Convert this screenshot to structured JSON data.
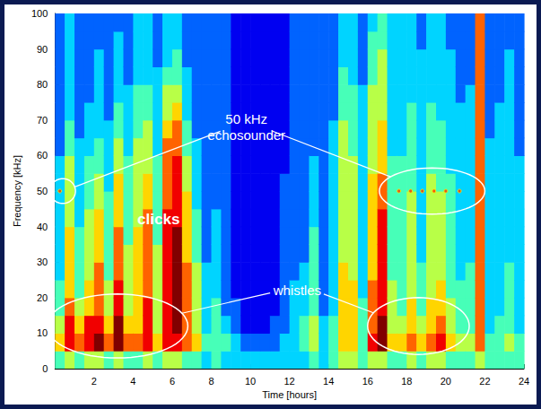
{
  "chart_data": {
    "type": "spectrogram",
    "x_label": "Time [hours]",
    "y_label": "Frequency [kHz]",
    "xlim": [
      0,
      24
    ],
    "xticks": [
      2,
      4,
      6,
      8,
      10,
      12,
      14,
      16,
      18,
      20,
      22,
      24
    ],
    "ylim": [
      0,
      100
    ],
    "yticks": [
      0,
      10,
      20,
      30,
      40,
      50,
      60,
      70,
      80,
      90,
      100
    ],
    "grid": false,
    "x_bins": [
      0,
      0.5,
      1,
      1.5,
      2,
      2.5,
      3,
      3.5,
      4,
      4.5,
      5,
      5.5,
      6,
      6.5,
      7,
      7.5,
      8,
      8.5,
      9,
      9.5,
      10,
      10.5,
      11,
      11.5,
      12,
      12.5,
      13,
      13.5,
      14,
      14.5,
      15,
      15.5,
      16,
      16.5,
      17,
      17.5,
      18,
      18.5,
      19,
      19.5,
      20,
      20.5,
      21,
      21.5,
      22,
      22.5,
      23,
      23.5,
      24
    ],
    "y_bins": [
      0,
      5,
      10,
      15,
      20,
      25,
      30,
      35,
      40,
      45,
      50,
      55,
      60,
      65,
      70,
      75,
      80,
      85,
      90,
      95,
      100
    ],
    "z_range": [
      0,
      9
    ],
    "z": [
      [
        4,
        6,
        5,
        4,
        4,
        3,
        3,
        3,
        3,
        3,
        3,
        3,
        2,
        2,
        2,
        2,
        2,
        2,
        2,
        2
      ],
      [
        5,
        8,
        8,
        7,
        6,
        6,
        6,
        6,
        5,
        5,
        5,
        5,
        4,
        4,
        3,
        3,
        3,
        3,
        3,
        3
      ],
      [
        4,
        7,
        6,
        5,
        4,
        4,
        4,
        4,
        3,
        3,
        3,
        3,
        3,
        2,
        2,
        2,
        2,
        2,
        2,
        2
      ],
      [
        5,
        8,
        8,
        6,
        6,
        5,
        5,
        5,
        5,
        4,
        4,
        4,
        3,
        3,
        3,
        2,
        2,
        2,
        2,
        2
      ],
      [
        5,
        9,
        8,
        7,
        7,
        7,
        6,
        6,
        6,
        5,
        5,
        4,
        4,
        3,
        3,
        3,
        3,
        3,
        2,
        2
      ],
      [
        4,
        7,
        6,
        5,
        5,
        4,
        4,
        4,
        4,
        4,
        3,
        3,
        3,
        3,
        2,
        2,
        2,
        2,
        2,
        2
      ],
      [
        5,
        9,
        9,
        8,
        8,
        7,
        7,
        7,
        6,
        6,
        6,
        5,
        5,
        4,
        4,
        3,
        3,
        3,
        3,
        2
      ],
      [
        4,
        7,
        6,
        5,
        5,
        5,
        5,
        4,
        4,
        4,
        4,
        4,
        3,
        3,
        3,
        3,
        2,
        2,
        2,
        2
      ],
      [
        4,
        7,
        6,
        6,
        6,
        6,
        6,
        6,
        5,
        5,
        5,
        5,
        5,
        4,
        4,
        4,
        3,
        3,
        3,
        3
      ],
      [
        5,
        8,
        8,
        8,
        7,
        7,
        7,
        7,
        7,
        6,
        6,
        5,
        5,
        5,
        4,
        4,
        3,
        3,
        3,
        3
      ],
      [
        4,
        6,
        5,
        5,
        5,
        5,
        5,
        4,
        4,
        4,
        4,
        4,
        3,
        3,
        3,
        3,
        3,
        2,
        2,
        2
      ],
      [
        5,
        8,
        8,
        8,
        8,
        8,
        8,
        8,
        8,
        7,
        7,
        7,
        7,
        6,
        5,
        5,
        4,
        3,
        3,
        3
      ],
      [
        5,
        8,
        9,
        9,
        9,
        9,
        9,
        9,
        8,
        8,
        8,
        8,
        7,
        7,
        6,
        5,
        4,
        4,
        3,
        3
      ],
      [
        4,
        7,
        7,
        7,
        7,
        7,
        6,
        6,
        6,
        6,
        5,
        5,
        4,
        4,
        3,
        3,
        3,
        2,
        2,
        2
      ],
      [
        4,
        6,
        5,
        5,
        5,
        5,
        4,
        4,
        4,
        3,
        3,
        3,
        3,
        2,
        2,
        2,
        2,
        2,
        2,
        2
      ],
      [
        3,
        4,
        3,
        3,
        3,
        3,
        2,
        2,
        2,
        2,
        2,
        2,
        2,
        2,
        2,
        2,
        2,
        2,
        2,
        2
      ],
      [
        4,
        4,
        4,
        4,
        3,
        3,
        3,
        3,
        3,
        2,
        2,
        2,
        2,
        2,
        2,
        2,
        2,
        2,
        2,
        2
      ],
      [
        3,
        4,
        3,
        2,
        2,
        2,
        2,
        2,
        2,
        2,
        2,
        2,
        2,
        2,
        2,
        2,
        2,
        2,
        2,
        2
      ],
      [
        3,
        3,
        2,
        2,
        1,
        1,
        1,
        1,
        1,
        1,
        1,
        1,
        1,
        1,
        1,
        1,
        1,
        1,
        1,
        1
      ],
      [
        3,
        2,
        1,
        1,
        1,
        1,
        1,
        1,
        1,
        1,
        1,
        1,
        1,
        1,
        1,
        1,
        1,
        1,
        1,
        1
      ],
      [
        3,
        2,
        1,
        1,
        1,
        1,
        1,
        1,
        1,
        1,
        1,
        1,
        1,
        1,
        1,
        1,
        1,
        1,
        1,
        1
      ],
      [
        3,
        2,
        1,
        1,
        1,
        1,
        1,
        1,
        1,
        1,
        1,
        1,
        1,
        1,
        1,
        1,
        1,
        1,
        1,
        1
      ],
      [
        3,
        2,
        2,
        1,
        1,
        1,
        1,
        1,
        1,
        1,
        1,
        1,
        1,
        1,
        1,
        1,
        1,
        1,
        1,
        1
      ],
      [
        3,
        3,
        2,
        2,
        2,
        2,
        2,
        2,
        2,
        2,
        2,
        1,
        1,
        1,
        1,
        1,
        1,
        1,
        1,
        1
      ],
      [
        3,
        3,
        3,
        3,
        3,
        2,
        2,
        2,
        2,
        2,
        2,
        2,
        2,
        2,
        2,
        2,
        2,
        2,
        2,
        2
      ],
      [
        3,
        4,
        4,
        3,
        3,
        3,
        2,
        2,
        2,
        2,
        2,
        2,
        2,
        2,
        2,
        2,
        2,
        2,
        2,
        2
      ],
      [
        4,
        5,
        5,
        4,
        4,
        4,
        4,
        4,
        3,
        3,
        3,
        3,
        2,
        2,
        2,
        2,
        2,
        2,
        2,
        2
      ],
      [
        3,
        3,
        3,
        2,
        2,
        2,
        2,
        2,
        2,
        2,
        2,
        2,
        2,
        2,
        2,
        2,
        2,
        2,
        2,
        2
      ],
      [
        4,
        4,
        4,
        3,
        3,
        3,
        3,
        3,
        3,
        3,
        3,
        3,
        3,
        3,
        2,
        2,
        2,
        2,
        2,
        2
      ],
      [
        5,
        6,
        6,
        6,
        6,
        6,
        5,
        5,
        5,
        5,
        5,
        5,
        5,
        5,
        4,
        4,
        4,
        3,
        3,
        3
      ],
      [
        5,
        6,
        6,
        6,
        6,
        5,
        5,
        5,
        5,
        5,
        5,
        5,
        4,
        4,
        4,
        4,
        3,
        3,
        3,
        3
      ],
      [
        4,
        4,
        4,
        4,
        3,
        3,
        3,
        3,
        3,
        3,
        3,
        3,
        3,
        3,
        3,
        3,
        2,
        2,
        2,
        2
      ],
      [
        5,
        8,
        7,
        7,
        7,
        6,
        6,
        6,
        6,
        6,
        6,
        5,
        5,
        5,
        5,
        5,
        4,
        4,
        4,
        3
      ],
      [
        5,
        9,
        9,
        8,
        8,
        8,
        8,
        8,
        8,
        7,
        7,
        6,
        6,
        6,
        5,
        5,
        5,
        5,
        4,
        4
      ],
      [
        4,
        6,
        5,
        5,
        5,
        4,
        4,
        4,
        4,
        4,
        4,
        4,
        3,
        3,
        3,
        3,
        3,
        3,
        3,
        3
      ],
      [
        4,
        6,
        5,
        4,
        4,
        4,
        4,
        4,
        4,
        4,
        4,
        4,
        3,
        3,
        3,
        3,
        3,
        3,
        3,
        3
      ],
      [
        5,
        7,
        6,
        6,
        5,
        5,
        5,
        5,
        5,
        5,
        4,
        4,
        4,
        4,
        4,
        3,
        3,
        3,
        3,
        3
      ],
      [
        4,
        6,
        5,
        4,
        4,
        4,
        3,
        3,
        3,
        3,
        3,
        3,
        3,
        3,
        3,
        3,
        3,
        3,
        2,
        2
      ],
      [
        5,
        7,
        6,
        6,
        5,
        5,
        5,
        5,
        5,
        5,
        5,
        4,
        4,
        4,
        4,
        3,
        3,
        3,
        3,
        3
      ],
      [
        5,
        8,
        7,
        6,
        6,
        5,
        5,
        5,
        5,
        5,
        4,
        4,
        4,
        4,
        3,
        3,
        3,
        3,
        3,
        3
      ],
      [
        4,
        6,
        5,
        5,
        4,
        4,
        4,
        4,
        4,
        4,
        4,
        3,
        3,
        3,
        3,
        3,
        3,
        3,
        2,
        2
      ],
      [
        4,
        5,
        4,
        4,
        4,
        3,
        3,
        3,
        3,
        3,
        3,
        3,
        3,
        3,
        3,
        2,
        2,
        2,
        2,
        2
      ],
      [
        4,
        5,
        4,
        4,
        4,
        4,
        3,
        3,
        3,
        3,
        3,
        3,
        3,
        3,
        3,
        3,
        2,
        2,
        2,
        2
      ],
      [
        5,
        7,
        7,
        7,
        7,
        7,
        7,
        7,
        7,
        7,
        7,
        7,
        7,
        7,
        7,
        7,
        7,
        7,
        7,
        7
      ],
      [
        4,
        4,
        3,
        3,
        3,
        3,
        3,
        3,
        3,
        3,
        3,
        3,
        3,
        2,
        2,
        2,
        2,
        2,
        2,
        2
      ],
      [
        4,
        4,
        4,
        3,
        3,
        3,
        3,
        3,
        3,
        3,
        3,
        3,
        3,
        3,
        3,
        2,
        2,
        2,
        2,
        2
      ],
      [
        4,
        5,
        4,
        4,
        4,
        4,
        3,
        3,
        3,
        3,
        3,
        3,
        3,
        3,
        3,
        3,
        3,
        3,
        2,
        2
      ],
      [
        4,
        4,
        3,
        3,
        3,
        3,
        3,
        3,
        3,
        3,
        3,
        3,
        2,
        2,
        2,
        2,
        2,
        2,
        2,
        2
      ]
    ],
    "pings": {
      "x": [
        0.25,
        17.6,
        18.2,
        18.8,
        19.4,
        20.0,
        20.7
      ],
      "y": 50
    },
    "annotations": [
      {
        "text": "50 kHz\nechosounder",
        "x": 9.8,
        "y": 68,
        "ellipses": [
          {
            "cx": 0.4,
            "cy": 50,
            "rx": 0.65,
            "ry": 3.5
          },
          {
            "cx": 19.3,
            "cy": 50,
            "rx": 2.7,
            "ry": 6.5
          }
        ]
      },
      {
        "text": "clicks",
        "x": 5.3,
        "y": 42,
        "ellipses": []
      },
      {
        "text": "whistles",
        "x": 12.4,
        "y": 22,
        "ellipses": [
          {
            "cx": 3.2,
            "cy": 12,
            "rx": 3.6,
            "ry": 9
          },
          {
            "cx": 18.6,
            "cy": 12,
            "rx": 2.6,
            "ry": 8
          }
        ]
      }
    ]
  }
}
